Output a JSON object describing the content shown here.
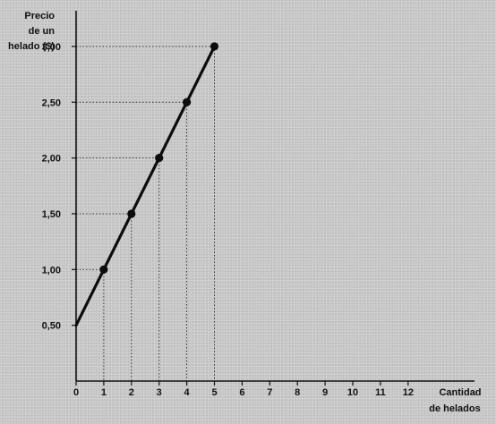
{
  "chart_data": {
    "type": "line",
    "title": "",
    "ylabel": [
      "Precio",
      "de un",
      "helado ($)"
    ],
    "xlabel": [
      "Cantidad",
      "de helados"
    ],
    "xlim": [
      0,
      14.4
    ],
    "ylim": [
      0,
      3.32
    ],
    "x_ticks": [
      0,
      1,
      2,
      3,
      4,
      5,
      6,
      7,
      8,
      9,
      10,
      11,
      12
    ],
    "x_tick_labels": [
      "0",
      "1",
      "2",
      "3",
      "4",
      "5",
      "6",
      "7",
      "8",
      "9",
      "10",
      "11",
      "12"
    ],
    "y_ticks": [
      0.5,
      1.0,
      1.5,
      2.0,
      2.5,
      3.0
    ],
    "y_tick_labels": [
      "0,50",
      "1,00",
      "1,50",
      "2,00",
      "2,50",
      "3,00"
    ],
    "grid": false,
    "series": [
      {
        "x": [
          0,
          1,
          2,
          3,
          4,
          5
        ],
        "values": [
          0.5,
          1.0,
          1.5,
          2.0,
          2.5,
          3.0
        ],
        "markers": [
          false,
          true,
          true,
          true,
          true,
          true
        ]
      }
    ]
  }
}
